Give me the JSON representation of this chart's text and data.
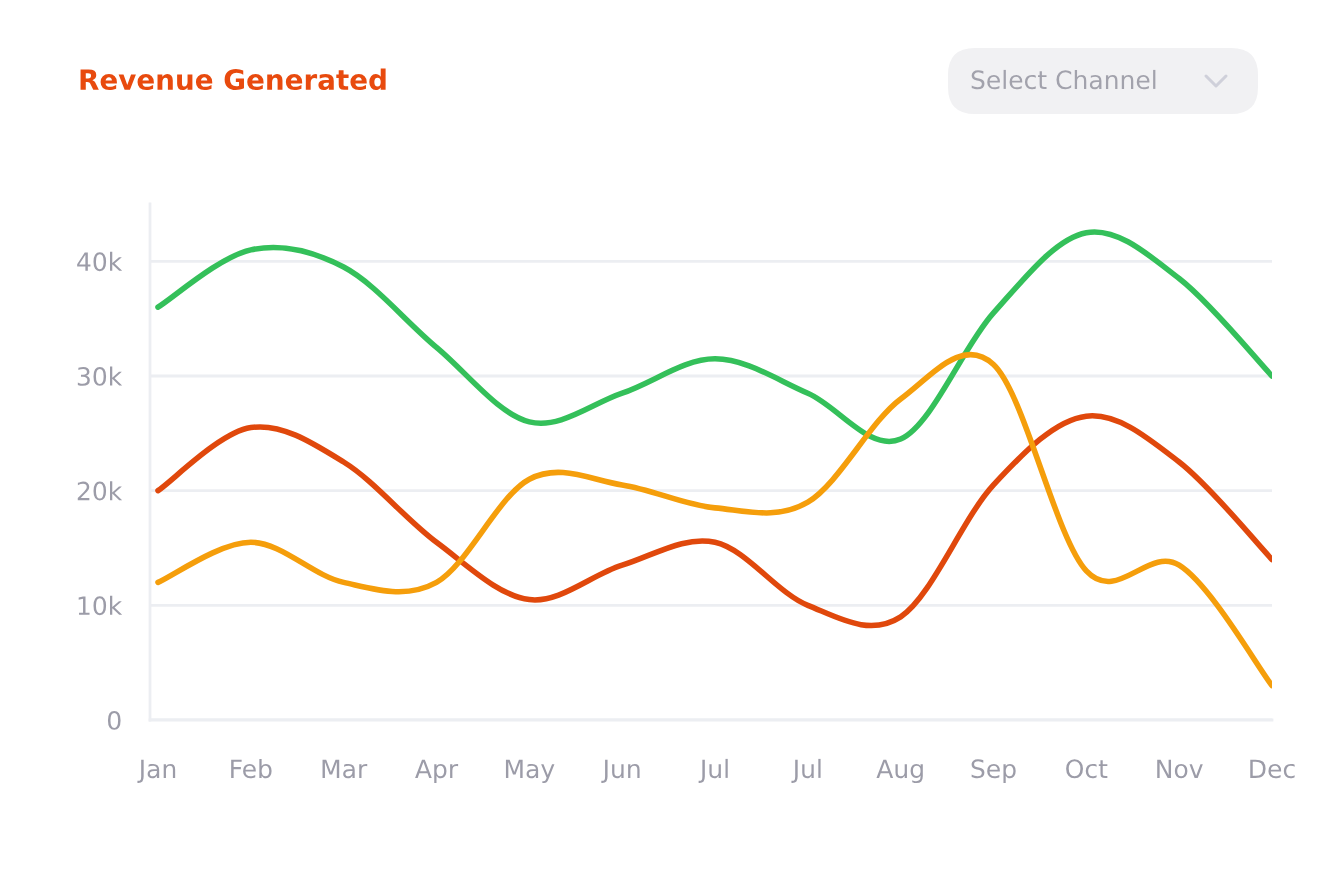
{
  "chart_data": {
    "type": "line",
    "title": "Revenue Generated",
    "annotations": [
      "Select Channel"
    ],
    "categories": [
      "Jan",
      "Feb",
      "Mar",
      "Apr",
      "May",
      "Jun",
      "Jul",
      "Jul",
      "Aug",
      "Sep",
      "Oct",
      "Nov",
      "Dec"
    ],
    "series": [
      {
        "color": "#34c05a",
        "values": [
          36000,
          41000,
          39500,
          32500,
          26000,
          28500,
          31500,
          28500,
          24500,
          35500,
          42500,
          38500,
          30000
        ]
      },
      {
        "color": "#e0480c",
        "values": [
          20000,
          25500,
          22500,
          15500,
          10500,
          13500,
          15500,
          10000,
          9000,
          20500,
          26500,
          22500,
          14000
        ]
      },
      {
        "color": "#f59e0b",
        "values": [
          12000,
          15500,
          12000,
          12000,
          21000,
          20500,
          18500,
          19000,
          28000,
          31000,
          13000,
          13500,
          3000
        ]
      }
    ],
    "ylim": [
      0,
      45000
    ],
    "yticks": [
      0,
      {
        "value": 10000,
        "label": "10k"
      },
      {
        "value": 20000,
        "label": "20k"
      },
      {
        "value": 30000,
        "label": "30k"
      },
      {
        "value": 40000,
        "label": "40k"
      }
    ],
    "grid": "y",
    "marker": "none",
    "line_style": "solid"
  }
}
